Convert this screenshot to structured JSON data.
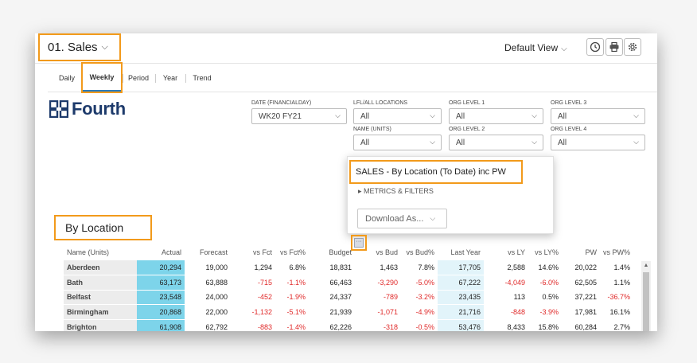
{
  "header": {
    "title": "01. Sales",
    "view": "Default View"
  },
  "tabs": [
    {
      "label": "Daily"
    },
    {
      "label": "Weekly"
    },
    {
      "label": "Period"
    },
    {
      "label": "Year"
    },
    {
      "label": "Trend"
    }
  ],
  "logo": {
    "text": "Fourth"
  },
  "filters": [
    {
      "label": "DATE (FINANCIALDAY)",
      "value": "WK20 FY21"
    },
    {
      "label": "LFL/ALL LOCATIONS",
      "value": "All"
    },
    {
      "label": "ORG LEVEL 1",
      "value": "All"
    },
    {
      "label": "ORG LEVEL 3",
      "value": "All"
    },
    {
      "label": "NAME (UNITS)",
      "value": "All"
    },
    {
      "label": "ORG LEVEL 2",
      "value": "All"
    },
    {
      "label": "ORG LEVEL 4",
      "value": "All"
    }
  ],
  "popup": {
    "title": "SALES - By Location (To Date) inc PW",
    "metrics": "METRICS & FILTERS",
    "download": "Download As..."
  },
  "section": {
    "title": "By Location"
  },
  "table": {
    "columns": [
      "Name (Units)",
      "Actual",
      "Forecast",
      "vs Fct",
      "vs Fct%",
      "Budget",
      "vs Bud",
      "vs Bud%",
      "Last Year",
      "vs LY",
      "vs LY%",
      "PW",
      "vs PW%"
    ],
    "rows": [
      [
        "Aberdeen",
        "20,294",
        "19,000",
        "1,294",
        "6.8%",
        "18,831",
        "1,463",
        "7.8%",
        "17,705",
        "2,588",
        "14.6%",
        "20,022",
        "1.4%"
      ],
      [
        "Bath",
        "63,173",
        "63,888",
        "-715",
        "-1.1%",
        "66,463",
        "-3,290",
        "-5.0%",
        "67,222",
        "-4,049",
        "-6.0%",
        "62,505",
        "1.1%"
      ],
      [
        "Belfast",
        "23,548",
        "24,000",
        "-452",
        "-1.9%",
        "24,337",
        "-789",
        "-3.2%",
        "23,435",
        "113",
        "0.5%",
        "37,221",
        "-36.7%"
      ],
      [
        "Birmingham",
        "20,868",
        "22,000",
        "-1,132",
        "-5.1%",
        "21,939",
        "-1,071",
        "-4.9%",
        "21,716",
        "-848",
        "-3.9%",
        "17,981",
        "16.1%"
      ],
      [
        "Brighton",
        "61,908",
        "62,792",
        "-883",
        "-1.4%",
        "62,226",
        "-318",
        "-0.5%",
        "53,476",
        "8,433",
        "15.8%",
        "60,284",
        "2.7%"
      ]
    ]
  },
  "colors": {
    "highlight": "#f29a1b",
    "actual_cell": "#7dd4ea",
    "last_year_cell": "#e2f4fa",
    "negative": "#e02a2a",
    "logo": "#1d3a6b"
  }
}
